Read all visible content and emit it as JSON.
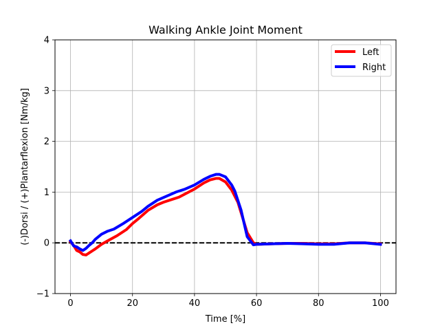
{
  "chart_data": {
    "type": "line",
    "title": "Walking Ankle Joint Moment",
    "xlabel": "Time [%]",
    "ylabel": "(-)Dorsi / (+)Plantarflexion [Nm/kg]",
    "xlim": [
      -5,
      105
    ],
    "ylim": [
      -1,
      4
    ],
    "xticks": [
      0,
      20,
      40,
      60,
      80,
      100
    ],
    "xtick_labels": [
      "0",
      "20",
      "40",
      "60",
      "80",
      "100"
    ],
    "yticks": [
      -1,
      0,
      1,
      2,
      3,
      4
    ],
    "ytick_labels": [
      "−1",
      "0",
      "1",
      "2",
      "3",
      "4"
    ],
    "grid": true,
    "legend_position": "top-right",
    "reference_line": {
      "y": 0,
      "style": "dashed",
      "color": "#000000"
    },
    "series": [
      {
        "name": "Left",
        "color": "#ff0000",
        "x": [
          0,
          1,
          2,
          3,
          4,
          5,
          6,
          7,
          8,
          10,
          12,
          15,
          18,
          20,
          22,
          25,
          28,
          30,
          35,
          40,
          43,
          45,
          47,
          48,
          50,
          52,
          54,
          55,
          57,
          59,
          60,
          65,
          70,
          75,
          80,
          85,
          90,
          95,
          100
        ],
        "y": [
          0.02,
          -0.05,
          -0.15,
          -0.18,
          -0.23,
          -0.24,
          -0.2,
          -0.16,
          -0.12,
          -0.03,
          0.04,
          0.14,
          0.26,
          0.38,
          0.48,
          0.64,
          0.75,
          0.8,
          0.9,
          1.06,
          1.18,
          1.24,
          1.27,
          1.27,
          1.2,
          1.04,
          0.8,
          0.6,
          0.2,
          0.0,
          -0.03,
          -0.02,
          -0.01,
          -0.01,
          -0.02,
          -0.02,
          0.0,
          0.0,
          -0.02
        ]
      },
      {
        "name": "Right",
        "color": "#0000ff",
        "x": [
          0,
          1,
          2,
          3,
          4,
          5,
          6,
          7,
          8,
          10,
          12,
          14,
          17,
          20,
          23,
          25,
          28,
          31,
          34,
          37,
          40,
          43,
          45,
          47,
          48,
          50,
          52,
          53,
          55,
          57,
          59,
          60,
          65,
          70,
          75,
          80,
          85,
          90,
          95,
          100
        ],
        "y": [
          0.04,
          -0.06,
          -0.08,
          -0.12,
          -0.15,
          -0.11,
          -0.05,
          0.0,
          0.07,
          0.17,
          0.23,
          0.27,
          0.38,
          0.5,
          0.62,
          0.72,
          0.84,
          0.92,
          1.0,
          1.06,
          1.14,
          1.25,
          1.31,
          1.35,
          1.35,
          1.3,
          1.14,
          1.02,
          0.65,
          0.12,
          -0.04,
          -0.03,
          -0.02,
          -0.01,
          -0.02,
          -0.03,
          -0.03,
          0.0,
          0.0,
          -0.03
        ]
      }
    ]
  }
}
